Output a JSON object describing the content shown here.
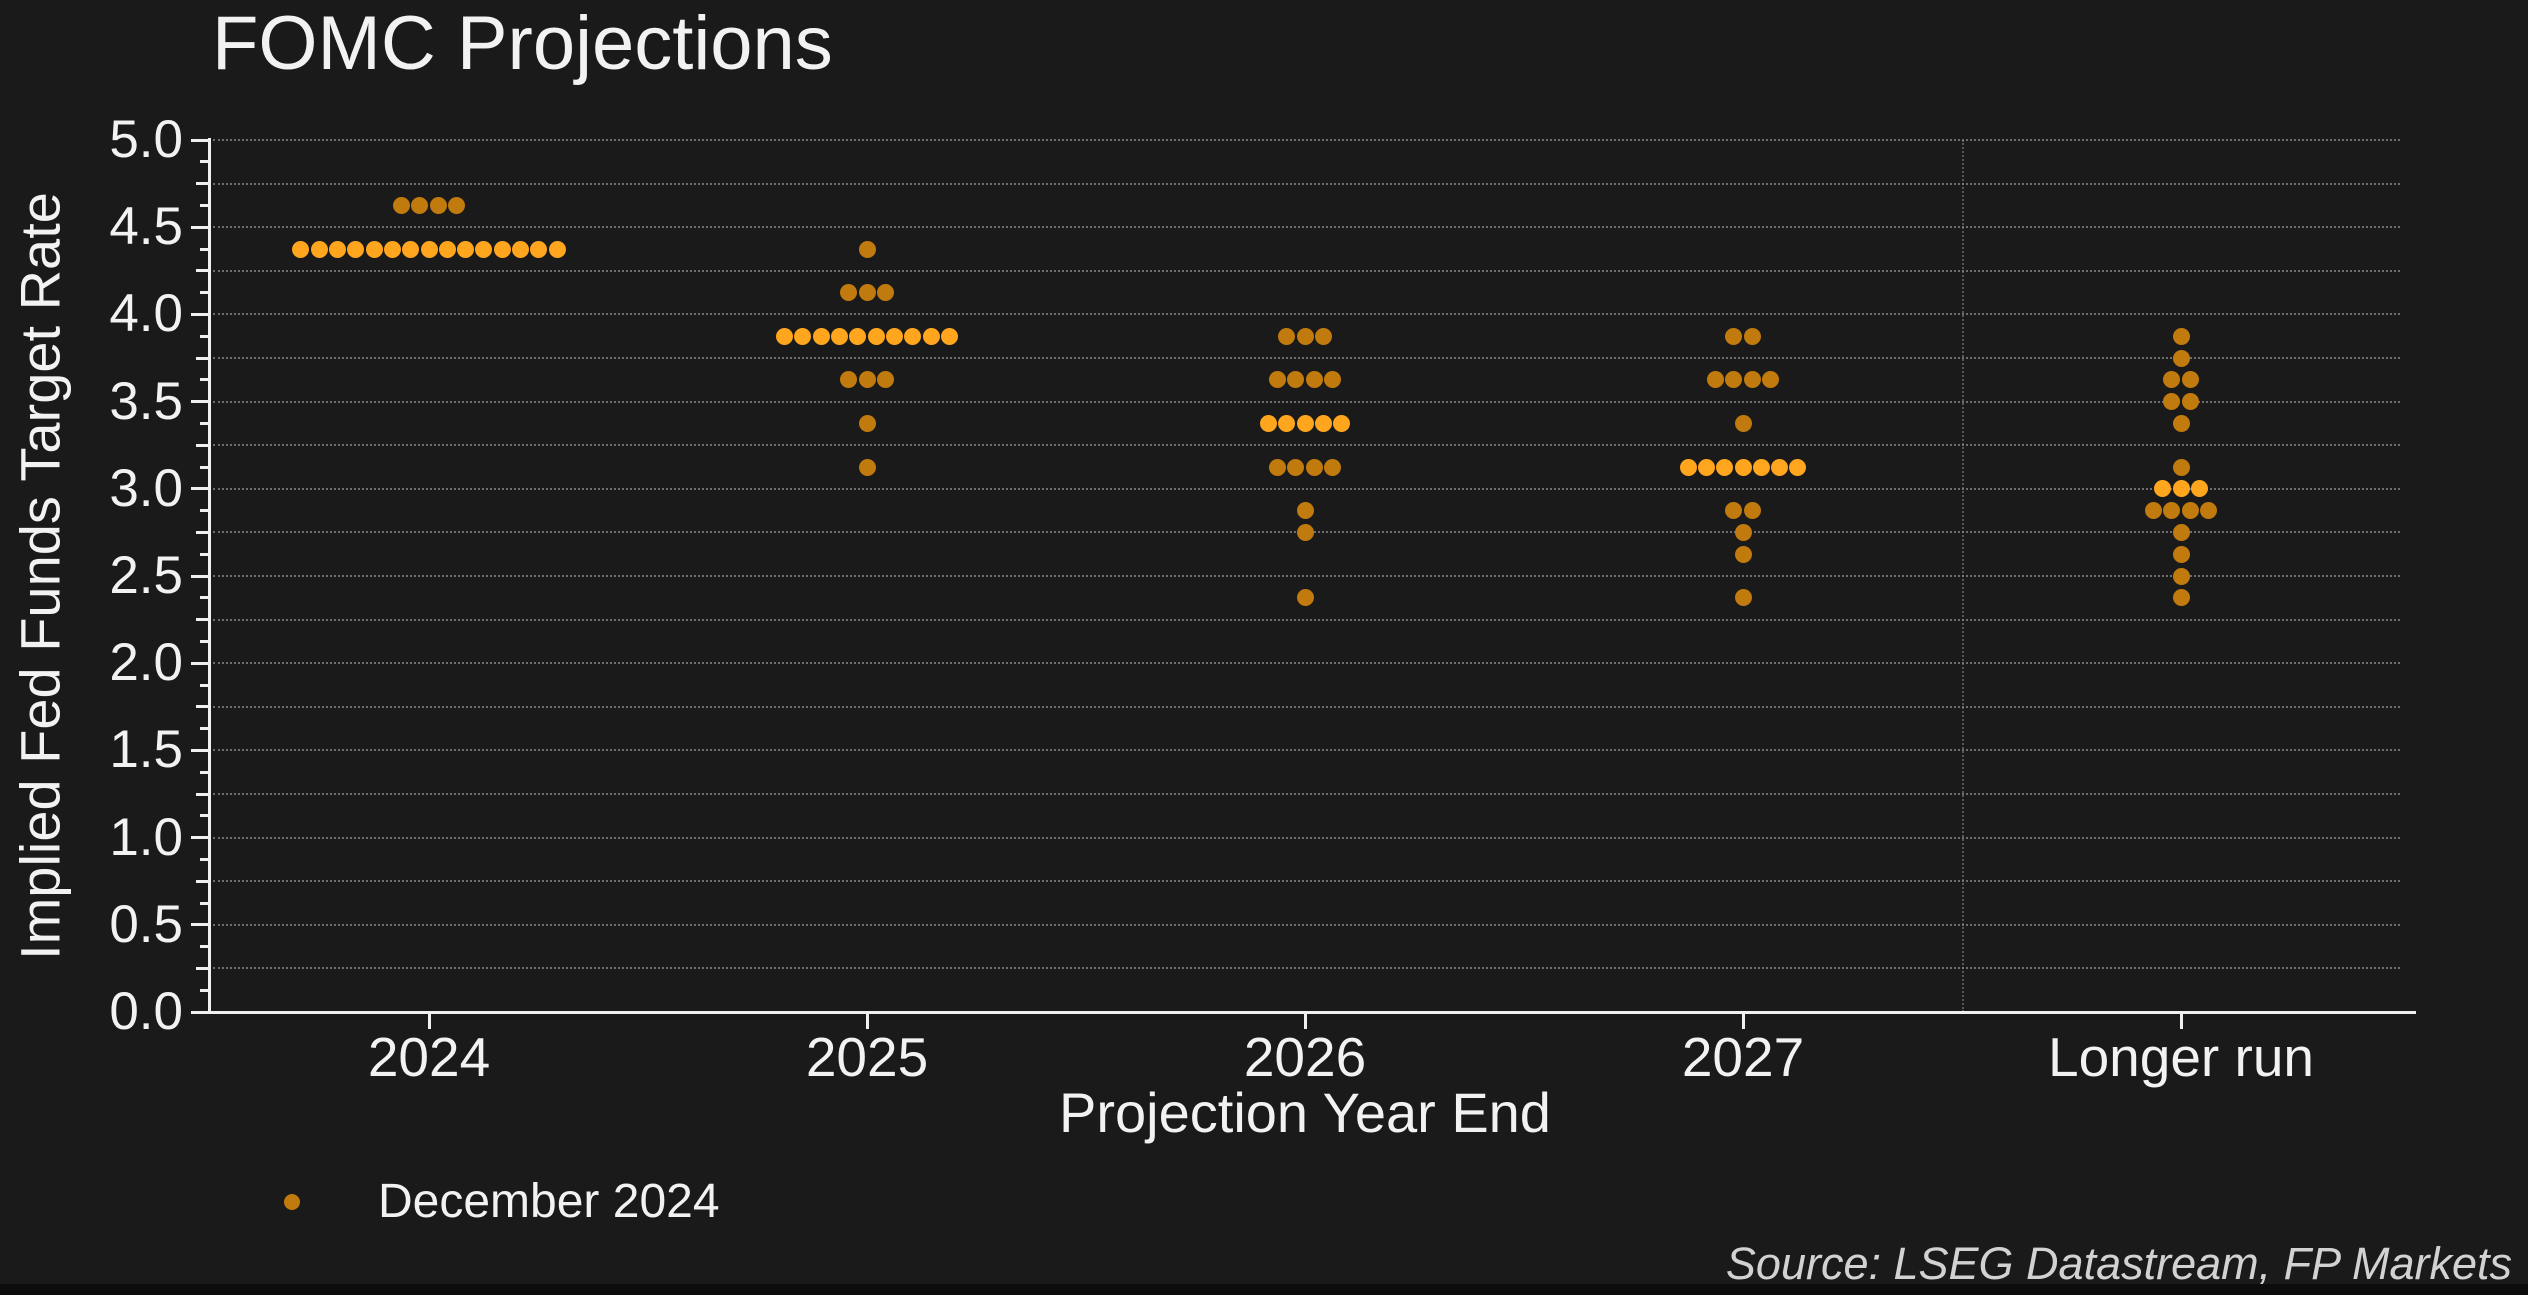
{
  "title": "FOMC Projections",
  "axes": {
    "ylabel": "Implied Fed Funds Target Rate",
    "xlabel": "Projection Year End",
    "ytick_labels": [
      "5.0",
      "4.5",
      "4.0",
      "3.5",
      "3.0",
      "2.5",
      "2.0",
      "1.5",
      "1.0",
      "0.5",
      "0.0"
    ]
  },
  "legend": {
    "label": "December 2024"
  },
  "source": "Source: LSEG Datastream, FP Markets",
  "colors": {
    "background": "#1a1a1a",
    "text": "#f2f2f2",
    "grid": "#8a8a8a",
    "spine": "#f0f0f0",
    "dot": "#c07a0d",
    "dot_median": "#ffa51e",
    "source_text": "#d2d2d2"
  },
  "chart_data": {
    "type": "scatter",
    "subtype": "dot-plot",
    "title": "FOMC Projections",
    "xlabel": "Projection Year End",
    "ylabel": "Implied Fed Funds Target Rate",
    "ylim": [
      0.0,
      5.0
    ],
    "ytick_step": 0.5,
    "grid_step": 0.25,
    "minor_tick_step": 0.125,
    "grid_on": true,
    "legend_position": "bottom-left",
    "legend_entries": [
      "December 2024"
    ],
    "categories": [
      "2024",
      "2025",
      "2026",
      "2027",
      "Longer run"
    ],
    "separator_before_category": "Longer run",
    "columns": [
      {
        "category": "2024",
        "median": 4.375,
        "distribution": [
          {
            "rate": 4.625,
            "count": 4
          },
          {
            "rate": 4.375,
            "count": 15,
            "median": true
          }
        ]
      },
      {
        "category": "2025",
        "median": 3.875,
        "distribution": [
          {
            "rate": 4.375,
            "count": 1
          },
          {
            "rate": 4.125,
            "count": 3
          },
          {
            "rate": 3.875,
            "count": 10,
            "median": true
          },
          {
            "rate": 3.625,
            "count": 3
          },
          {
            "rate": 3.375,
            "count": 1
          },
          {
            "rate": 3.125,
            "count": 1
          }
        ]
      },
      {
        "category": "2026",
        "median": 3.375,
        "distribution": [
          {
            "rate": 3.875,
            "count": 3
          },
          {
            "rate": 3.625,
            "count": 4
          },
          {
            "rate": 3.375,
            "count": 5,
            "median": true
          },
          {
            "rate": 3.125,
            "count": 4
          },
          {
            "rate": 2.875,
            "count": 1
          },
          {
            "rate": 2.75,
            "count": 1
          },
          {
            "rate": 2.375,
            "count": 1
          }
        ]
      },
      {
        "category": "2027",
        "median": 3.125,
        "distribution": [
          {
            "rate": 3.875,
            "count": 2
          },
          {
            "rate": 3.625,
            "count": 4
          },
          {
            "rate": 3.375,
            "count": 1
          },
          {
            "rate": 3.125,
            "count": 7,
            "median": true
          },
          {
            "rate": 2.875,
            "count": 2
          },
          {
            "rate": 2.75,
            "count": 1
          },
          {
            "rate": 2.625,
            "count": 1
          },
          {
            "rate": 2.375,
            "count": 1
          }
        ]
      },
      {
        "category": "Longer run",
        "median": 3.0,
        "distribution": [
          {
            "rate": 3.875,
            "count": 1
          },
          {
            "rate": 3.75,
            "count": 1
          },
          {
            "rate": 3.625,
            "count": 2
          },
          {
            "rate": 3.5,
            "count": 2
          },
          {
            "rate": 3.375,
            "count": 1
          },
          {
            "rate": 3.125,
            "count": 1
          },
          {
            "rate": 3.0,
            "count": 3,
            "median": true
          },
          {
            "rate": 2.875,
            "count": 4
          },
          {
            "rate": 2.75,
            "count": 1
          },
          {
            "rate": 2.625,
            "count": 1
          },
          {
            "rate": 2.5,
            "count": 1
          },
          {
            "rate": 2.375,
            "count": 1
          }
        ]
      }
    ]
  }
}
